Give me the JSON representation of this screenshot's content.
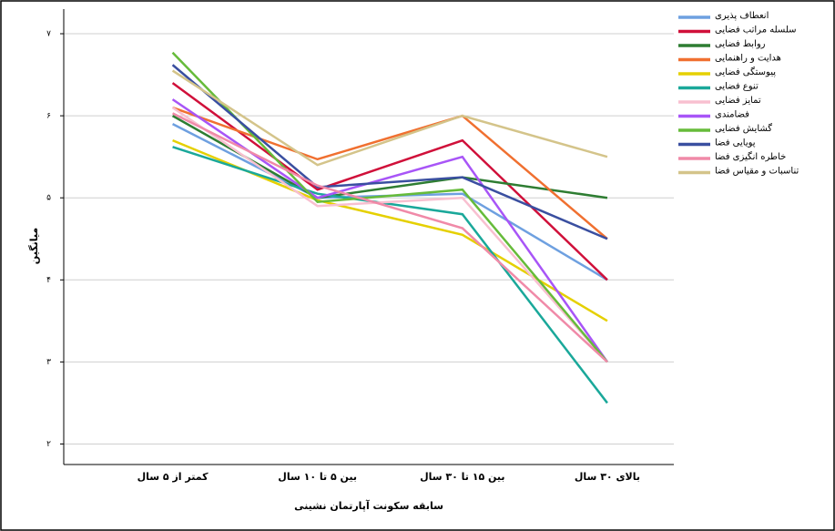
{
  "chart_data": {
    "type": "line",
    "xlabel": "سابقه سکونت آپارتمان نشینی",
    "ylabel": "میانگین",
    "categories": [
      "کمتر از ۵ سال",
      "بین ۵ تا ۱۰ سال",
      "بین ۱۵ تا ۳۰ سال",
      "بالای ۳۰ سال"
    ],
    "ylim": [
      1.75,
      7.3
    ],
    "yticks": [
      {
        "value": 2,
        "label": "۲"
      },
      {
        "value": 3,
        "label": "۳"
      },
      {
        "value": 4,
        "label": "۴"
      },
      {
        "value": 5,
        "label": "۵"
      },
      {
        "value": 6,
        "label": "۶"
      },
      {
        "value": 7,
        "label": "۷"
      }
    ],
    "grid": true,
    "legend": "right",
    "series": [
      {
        "name": "انعطاف پذیری",
        "color": "#6ea0e0",
        "values": [
          5.9,
          5.0,
          5.05,
          4.0
        ]
      },
      {
        "name": "سلسله مراتب فضایی",
        "color": "#d0103a",
        "values": [
          6.4,
          5.1,
          5.7,
          4.0
        ]
      },
      {
        "name": "روابط فضایی",
        "color": "#2e7d32",
        "values": [
          6.0,
          5.0,
          5.25,
          5.0
        ]
      },
      {
        "name": "هدایت و راهنمایی",
        "color": "#f07030",
        "values": [
          6.1,
          5.47,
          6.0,
          4.5
        ]
      },
      {
        "name": "پیوستگی فضایی",
        "color": "#e5d000",
        "values": [
          5.7,
          4.97,
          4.55,
          3.5
        ]
      },
      {
        "name": "تنوع فضایی",
        "color": "#1aa89a",
        "values": [
          5.62,
          5.05,
          4.8,
          2.5
        ]
      },
      {
        "name": "تمایز فضایی",
        "color": "#f8c0d0",
        "values": [
          6.1,
          4.9,
          5.0,
          3.0
        ]
      },
      {
        "name": "فضامندی",
        "color": "#a855f7",
        "values": [
          6.2,
          5.0,
          5.5,
          3.0
        ]
      },
      {
        "name": "گشایش فضایی",
        "color": "#66bb3a",
        "values": [
          6.77,
          4.95,
          5.1,
          3.0
        ]
      },
      {
        "name": "پویایی فضا",
        "color": "#3a4fa0",
        "values": [
          6.62,
          5.13,
          5.25,
          4.5
        ]
      },
      {
        "name": "خاطره انگیزی فضا",
        "color": "#f08aa8",
        "values": [
          6.03,
          5.15,
          4.63,
          3.0
        ]
      },
      {
        "name": "تناسبات و مقیاس فضا",
        "color": "#d4c48a",
        "values": [
          6.55,
          5.4,
          6.0,
          5.5
        ]
      }
    ]
  }
}
